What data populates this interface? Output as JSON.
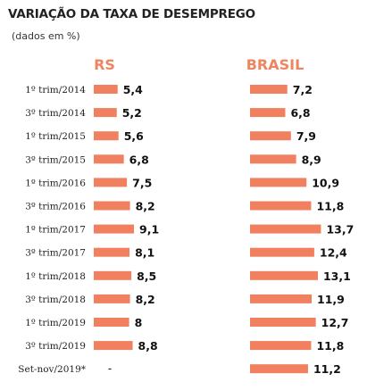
{
  "title": "VARIAÇÃO DA TAXA DE DESEMPREGO",
  "subtitle": "(dados em %)",
  "colors": {
    "bar": "#f0805f",
    "header": "#ee8560"
  },
  "chart_data": {
    "type": "bar",
    "orientation": "horizontal",
    "categories": [
      "1º trim/2014",
      "3º trim/2014",
      "1º trim/2015",
      "3º trim/2015",
      "1º trim/2016",
      "3º trim/2016",
      "1º trim/2017",
      "3º trim/2017",
      "1º trim/2018",
      "3º trim/2018",
      "1º trim/2019",
      "3º trim/2019",
      "Set-nov/2019*"
    ],
    "series": [
      {
        "name": "RS",
        "values": [
          5.4,
          5.2,
          5.6,
          6.8,
          7.5,
          8.2,
          9.1,
          8.1,
          8.5,
          8.2,
          8,
          8.8,
          null
        ],
        "labels": [
          "5,4",
          "5,2",
          "5,6",
          "6,8",
          "7,5",
          "8,2",
          "9,1",
          "8,1",
          "8,5",
          "8,2",
          "8",
          "8,8",
          "-"
        ]
      },
      {
        "name": "BRASIL",
        "values": [
          7.2,
          6.8,
          7.9,
          8.9,
          10.9,
          11.8,
          13.7,
          12.4,
          13.1,
          11.9,
          12.7,
          11.8,
          11.2
        ],
        "labels": [
          "7,2",
          "6,8",
          "7,9",
          "8,9",
          "10,9",
          "11,8",
          "13,7",
          "12,4",
          "13,1",
          "11,9",
          "12,7",
          "11,8",
          "11,2"
        ]
      }
    ],
    "title": "VARIAÇÃO DA TAXA DE DESEMPREGO",
    "subtitle": "(dados em %)",
    "xlabel": "",
    "ylabel": "",
    "grid": false,
    "legend": "none"
  }
}
